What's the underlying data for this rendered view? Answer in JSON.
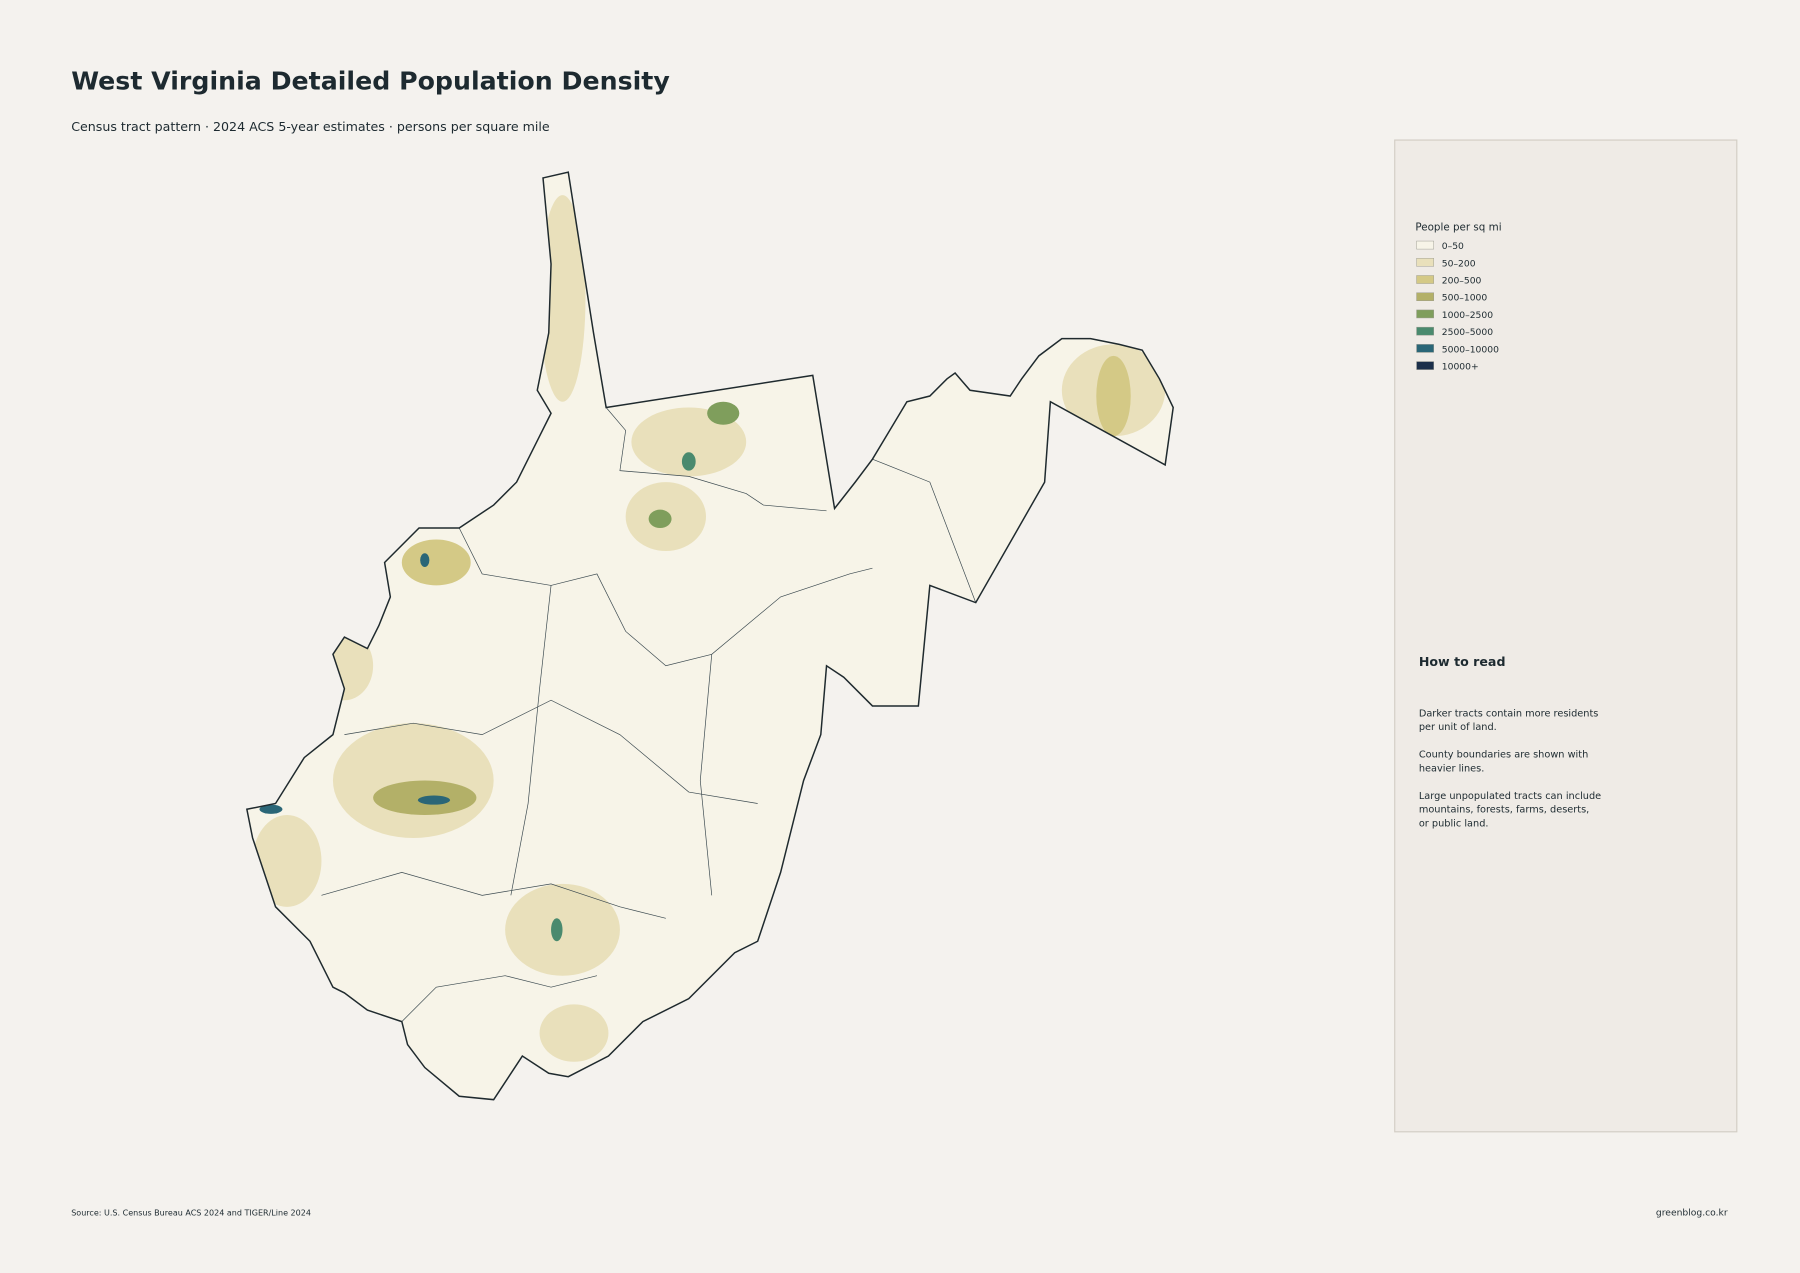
{
  "header": {
    "title": "West Virginia Detailed Population Density",
    "subtitle": "Census tract pattern · 2024 ACS 5-year estimates · persons per square mile"
  },
  "legend": {
    "title": "People per sq mi",
    "items": [
      {
        "label": "0–50",
        "color": "#f7f4e8"
      },
      {
        "label": "50–200",
        "color": "#e9e0bb"
      },
      {
        "label": "200–500",
        "color": "#d4c986"
      },
      {
        "label": "500–1000",
        "color": "#b3b068"
      },
      {
        "label": "1000–2500",
        "color": "#7f9e5c"
      },
      {
        "label": "2500–5000",
        "color": "#4a8a6e"
      },
      {
        "label": "5000–10000",
        "color": "#2a6677"
      },
      {
        "label": "10000+",
        "color": "#1b2f4a"
      }
    ]
  },
  "notes": {
    "heading": "How to read",
    "paragraphs": [
      [
        "Darker tracts contain more residents",
        "per unit of land."
      ],
      [
        "County boundaries are shown with",
        "heavier lines."
      ],
      [
        "Large unpopulated tracts can include",
        "mountains, forests, farms, deserts,",
        "or public land."
      ]
    ]
  },
  "footer": {
    "source": "Source: U.S. Census Bureau ACS 2024 and TIGER/Line 2024",
    "credit": "greenblog.co.kr"
  }
}
